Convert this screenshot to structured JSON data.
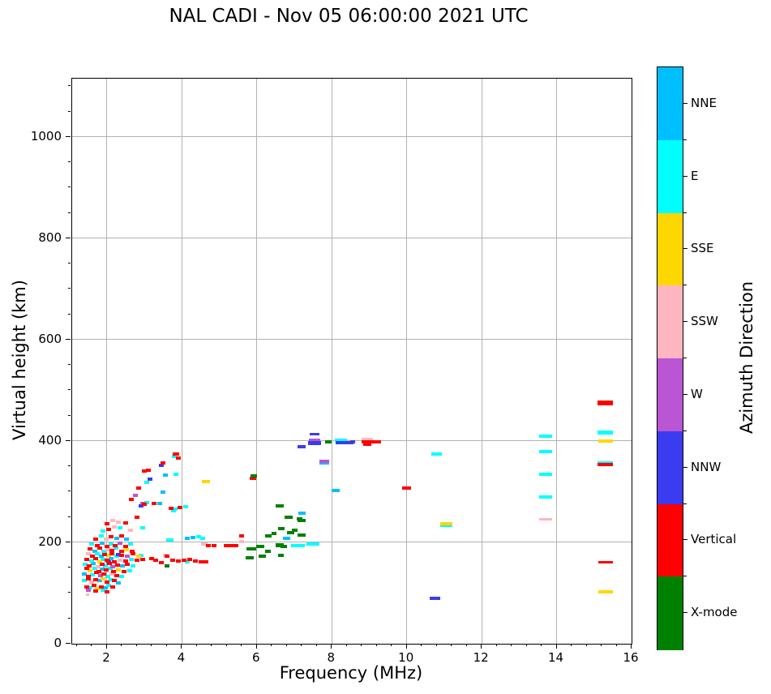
{
  "chart_data": {
    "type": "scatter",
    "title": "NAL CADI - Nov 05 06:00:00 2021 UTC",
    "xlabel": "Frequency (MHz)",
    "ylabel": "Virtual height (km)",
    "colorbar_title": "Azimuth Direction",
    "xlim": [
      1.07,
      16
    ],
    "ylim": [
      0,
      1115
    ],
    "x_ticks": [
      2,
      4,
      6,
      8,
      10,
      12,
      14,
      16
    ],
    "y_ticks": [
      0,
      200,
      400,
      600,
      800,
      1000
    ],
    "grid": true,
    "legend_position": "right-colorbar",
    "point_format": "[freq_MHz, virtual_height_km, width_px?, height_px?]",
    "series": [
      {
        "name": "NNE",
        "color": "#00BFFF",
        "points": [
          [
            1.95,
            110
          ],
          [
            1.8,
            124
          ],
          [
            2.3,
            120
          ],
          [
            1.4,
            138
          ],
          [
            1.88,
            147
          ],
          [
            1.64,
            158
          ],
          [
            2.42,
            153
          ],
          [
            2.1,
            168
          ],
          [
            1.84,
            172
          ],
          [
            1.68,
            183
          ],
          [
            1.88,
            198
          ],
          [
            2.25,
            208
          ],
          [
            2.52,
            206
          ],
          [
            3.4,
            277
          ],
          [
            3.5,
            299
          ],
          [
            3.55,
            333
          ],
          [
            4.15,
            208
          ],
          [
            4.3,
            210
          ],
          [
            6.8,
            208,
            9
          ],
          [
            7.2,
            257,
            9
          ],
          [
            8.1,
            302,
            10
          ],
          [
            7.8,
            356,
            12
          ]
        ]
      },
      {
        "name": "E",
        "color": "#00FFFF",
        "points": [
          [
            1.55,
            110
          ],
          [
            2.05,
            115
          ],
          [
            1.9,
            105
          ],
          [
            1.4,
            125
          ],
          [
            2.1,
            126
          ],
          [
            1.62,
            136
          ],
          [
            2.02,
            133
          ],
          [
            2.4,
            132
          ],
          [
            1.68,
            149
          ],
          [
            2.08,
            148
          ],
          [
            2.6,
            144
          ],
          [
            1.42,
            157
          ],
          [
            1.96,
            154
          ],
          [
            2.7,
            154
          ],
          [
            1.58,
            163
          ],
          [
            1.9,
            166
          ],
          [
            2.65,
            167
          ],
          [
            1.74,
            178
          ],
          [
            2.26,
            172
          ],
          [
            2.9,
            174
          ],
          [
            1.92,
            182
          ],
          [
            2.24,
            188
          ],
          [
            1.6,
            197
          ],
          [
            2.1,
            196
          ],
          [
            2.62,
            196
          ],
          [
            1.85,
            212
          ],
          [
            1.9,
            222
          ],
          [
            2.35,
            228
          ],
          [
            2.95,
            229
          ],
          [
            3.05,
            279
          ],
          [
            3.05,
            318
          ],
          [
            3.78,
            262
          ],
          [
            3.82,
            265
          ],
          [
            4.1,
            271
          ],
          [
            3.65,
            205
          ],
          [
            3.7,
            204
          ],
          [
            4.45,
            211
          ],
          [
            4.55,
            208
          ],
          [
            3.8,
            370
          ],
          [
            3.85,
            334
          ],
          [
            4.15,
            162
          ],
          [
            7.1,
            193,
            17
          ],
          [
            7.5,
            196,
            16
          ],
          [
            8.25,
            402,
            15
          ],
          [
            10.8,
            375,
            13
          ],
          [
            11.05,
            233,
            15
          ],
          [
            13.7,
            410,
            16
          ],
          [
            13.7,
            379,
            16
          ],
          [
            13.7,
            334,
            16
          ],
          [
            13.7,
            290,
            16
          ],
          [
            15.3,
            417,
            19,
            5
          ],
          [
            15.3,
            357,
            19
          ]
        ]
      },
      {
        "name": "SSE",
        "color": "#FFD700",
        "points": [
          [
            1.75,
            108
          ],
          [
            1.9,
            128
          ],
          [
            1.55,
            144
          ],
          [
            2.3,
            146
          ],
          [
            1.8,
            162
          ],
          [
            2.04,
            174
          ],
          [
            2.52,
            186
          ],
          [
            2.85,
            173
          ],
          [
            4.65,
            320,
            10
          ],
          [
            11.05,
            236,
            15
          ],
          [
            15.3,
            400,
            18
          ],
          [
            15.3,
            103,
            18
          ]
        ]
      },
      {
        "name": "SSW",
        "color": "#FFB6C1",
        "points": [
          [
            1.6,
            122
          ],
          [
            2.12,
            137
          ],
          [
            1.76,
            152
          ],
          [
            2.35,
            165
          ],
          [
            1.5,
            177
          ],
          [
            2.02,
            186
          ],
          [
            1.98,
            206
          ],
          [
            2.2,
            231
          ],
          [
            2.3,
            240
          ],
          [
            2.15,
            243
          ],
          [
            1.48,
            96,
            4,
            3
          ],
          [
            2.62,
            224
          ],
          [
            3.55,
            175
          ],
          [
            4.6,
            197,
            8
          ],
          [
            5.6,
            202
          ],
          [
            8.95,
            403,
            14
          ],
          [
            13.7,
            245,
            16,
            3
          ]
        ]
      },
      {
        "name": "W",
        "color": "#BA55D3",
        "points": [
          [
            1.5,
            105
          ],
          [
            1.82,
            134
          ],
          [
            2.16,
            152
          ],
          [
            2.55,
            173
          ],
          [
            2.35,
            198
          ],
          [
            2.75,
            293
          ],
          [
            2.95,
            277
          ],
          [
            7.55,
            402,
            14
          ],
          [
            7.8,
            360,
            12
          ]
        ]
      },
      {
        "name": "NNW",
        "color": "#3B3BEF",
        "points": [
          [
            2.05,
            161
          ],
          [
            2.3,
            176
          ],
          [
            2.9,
            272
          ],
          [
            3.15,
            325
          ],
          [
            3.45,
            352
          ],
          [
            7.2,
            389,
            10
          ],
          [
            7.55,
            413,
            12,
            3
          ],
          [
            7.55,
            396,
            16,
            5
          ],
          [
            8.35,
            397,
            22
          ],
          [
            8.55,
            398,
            6
          ],
          [
            10.75,
            89,
            13
          ]
        ]
      },
      {
        "name": "Vertical",
        "color": "#FF0000",
        "points": [
          [
            1.45,
            112
          ],
          [
            1.65,
            115
          ],
          [
            1.85,
            112
          ],
          [
            2.15,
            112
          ],
          [
            1.7,
            104
          ],
          [
            2.0,
            103
          ],
          [
            1.5,
            128
          ],
          [
            1.7,
            126
          ],
          [
            2.0,
            122
          ],
          [
            2.2,
            124
          ],
          [
            1.5,
            133
          ],
          [
            1.72,
            140
          ],
          [
            1.92,
            138
          ],
          [
            2.25,
            134
          ],
          [
            1.45,
            148
          ],
          [
            1.78,
            143
          ],
          [
            1.98,
            145
          ],
          [
            2.18,
            143
          ],
          [
            2.45,
            142
          ],
          [
            1.52,
            153
          ],
          [
            1.86,
            156
          ],
          [
            2.06,
            158
          ],
          [
            2.28,
            155
          ],
          [
            2.55,
            157
          ],
          [
            1.45,
            167
          ],
          [
            1.7,
            168
          ],
          [
            2.0,
            164
          ],
          [
            2.2,
            162
          ],
          [
            2.5,
            163
          ],
          [
            2.8,
            164
          ],
          [
            2.95,
            166
          ],
          [
            1.62,
            173
          ],
          [
            1.94,
            176
          ],
          [
            2.14,
            178
          ],
          [
            2.4,
            175
          ],
          [
            2.7,
            177
          ],
          [
            1.55,
            187
          ],
          [
            1.8,
            188
          ],
          [
            2.12,
            184
          ],
          [
            2.38,
            183
          ],
          [
            2.68,
            182
          ],
          [
            1.75,
            193
          ],
          [
            2.0,
            192
          ],
          [
            2.22,
            194
          ],
          [
            2.5,
            192
          ],
          [
            1.7,
            207
          ],
          [
            2.1,
            211
          ],
          [
            2.4,
            213
          ],
          [
            2.05,
            226
          ],
          [
            2.0,
            237
          ],
          [
            2.5,
            238
          ],
          [
            3.2,
            168
          ],
          [
            3.3,
            165
          ],
          [
            3.45,
            160
          ],
          [
            3.6,
            172
          ],
          [
            3.75,
            165
          ],
          [
            3.9,
            163
          ],
          [
            4.05,
            165
          ],
          [
            4.2,
            166
          ],
          [
            4.35,
            163
          ],
          [
            4.5,
            162
          ],
          [
            4.65,
            162
          ],
          [
            4.7,
            194
          ],
          [
            4.85,
            194
          ],
          [
            5.2,
            194,
            8
          ],
          [
            5.35,
            194
          ],
          [
            5.45,
            193
          ],
          [
            5.6,
            212
          ],
          [
            2.8,
            250
          ],
          [
            2.65,
            285
          ],
          [
            2.85,
            307
          ],
          [
            3.0,
            275
          ],
          [
            3.25,
            277
          ],
          [
            3.72,
            267
          ],
          [
            3.95,
            269
          ],
          [
            3.1,
            343
          ],
          [
            3.0,
            341
          ],
          [
            3.5,
            357
          ],
          [
            3.85,
            374,
            8
          ],
          [
            3.9,
            367
          ],
          [
            5.9,
            326,
            8
          ],
          [
            8.95,
            393,
            10
          ],
          [
            9.05,
            398,
            24
          ],
          [
            10.0,
            307,
            11
          ],
          [
            15.3,
            475,
            19,
            6
          ],
          [
            15.3,
            353,
            19
          ],
          [
            15.3,
            160,
            18,
            3
          ]
        ]
      },
      {
        "name": "X-mode",
        "color": "#008000",
        "points": [
          [
            3.6,
            154
          ],
          [
            5.92,
            331,
            8
          ],
          [
            6.6,
            272,
            10
          ],
          [
            6.85,
            250,
            10
          ],
          [
            7.2,
            243,
            10
          ],
          [
            6.65,
            227,
            8
          ],
          [
            6.9,
            219,
            9
          ],
          [
            7.2,
            214,
            10
          ],
          [
            6.3,
            213,
            8
          ],
          [
            6.45,
            218,
            6
          ],
          [
            6.6,
            195,
            10,
            5
          ],
          [
            6.72,
            192,
            8,
            4
          ],
          [
            6.1,
            192,
            10,
            4
          ],
          [
            5.85,
            187,
            12,
            4
          ],
          [
            6.3,
            182,
            7
          ],
          [
            6.15,
            172,
            9
          ],
          [
            6.65,
            174,
            7
          ],
          [
            5.8,
            170,
            10
          ],
          [
            7.0,
            224,
            7
          ],
          [
            7.15,
            246,
            7
          ],
          [
            7.9,
            399,
            8
          ]
        ]
      }
    ]
  }
}
